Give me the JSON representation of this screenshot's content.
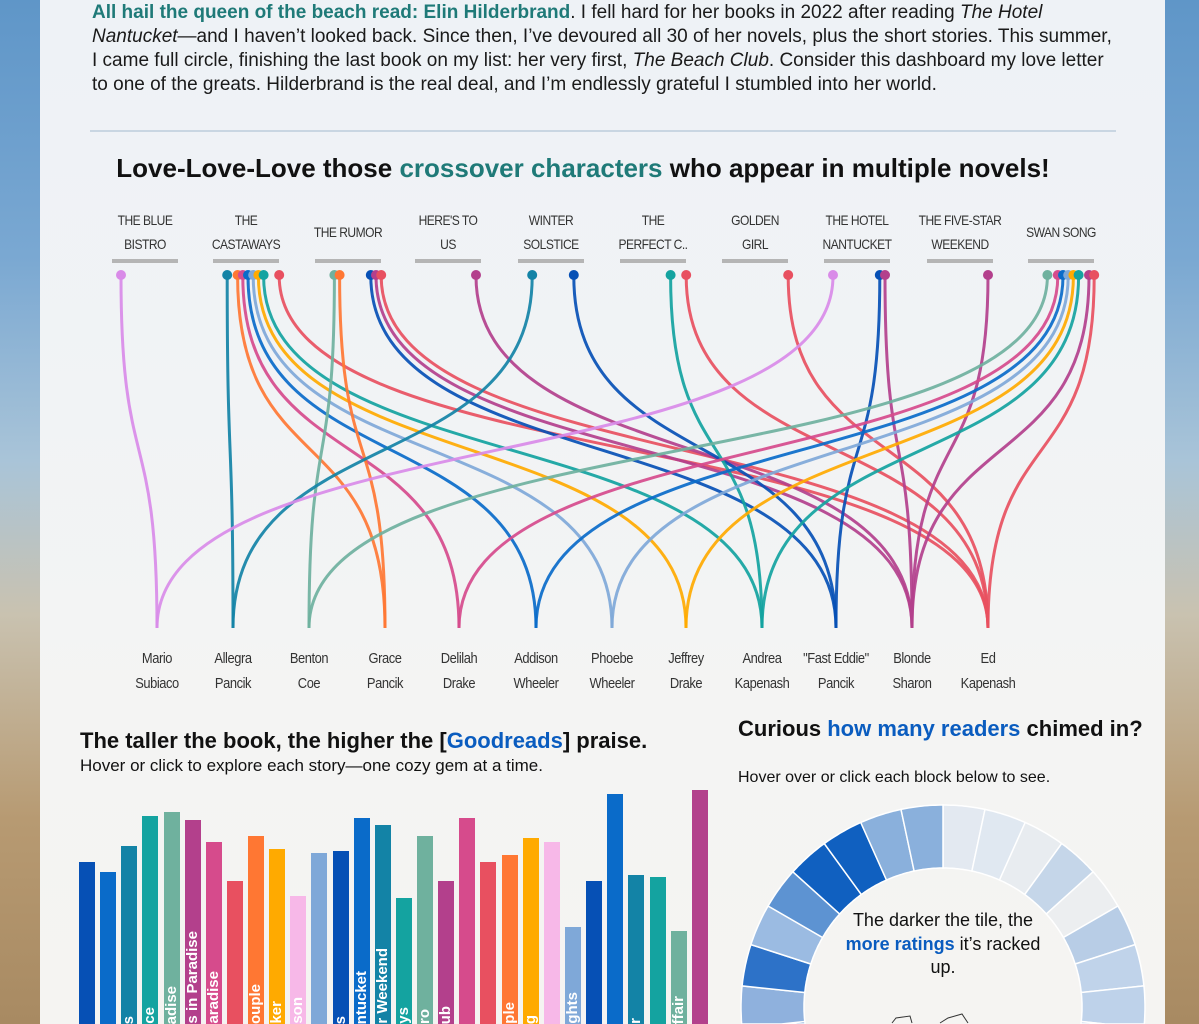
{
  "intro": {
    "highlight": "All hail the queen of the beach read: Elin Hilderbrand",
    "t1": ". I fell hard for her books in 2022 after reading ",
    "i1": "The Hotel Nantucket",
    "t2": "—and I haven’t looked back. Since then, I’ve devoured all 30 of her novels, plus the short stories. This summer, I came full circle, finishing the last book on my list: her very first, ",
    "i2": "The Beach Club",
    "t3": ". Consider this dashboard my love letter to one of the greats. Hilderbrand is the real deal, and I’m endlessly grateful I stumbled into her world."
  },
  "crossover": {
    "title_a": "Love-Love-Love those ",
    "title_hl": "crossover characters",
    "title_b": " who appear in multiple novels!",
    "books": [
      [
        "THE BLUE",
        "BISTRO"
      ],
      [
        "THE",
        "CASTAWAYS"
      ],
      [
        "THE RUMOR"
      ],
      [
        "HERE'S TO",
        "US"
      ],
      [
        "WINTER",
        "SOLSTICE"
      ],
      [
        "THE",
        "PERFECT C.."
      ],
      [
        "GOLDEN",
        "GIRL"
      ],
      [
        "THE HOTEL",
        "NANTUCKET"
      ],
      [
        "THE FIVE-STAR",
        "WEEKEND"
      ],
      [
        "SWAN SONG"
      ]
    ],
    "characters": [
      {
        "first": "Mario",
        "last": "Subiaco",
        "color": "#d98be8"
      },
      {
        "first": "Allegra",
        "last": "Pancik",
        "color": "#1383a6"
      },
      {
        "first": "Benton",
        "last": "Coe",
        "color": "#6fb19e"
      },
      {
        "first": "Grace",
        "last": "Pancik",
        "color": "#ff7733"
      },
      {
        "first": "Delilah",
        "last": "Drake",
        "color": "#d64b8c"
      },
      {
        "first": "Addison",
        "last": "Wheeler",
        "color": "#0a6bc9"
      },
      {
        "first": "Phoebe",
        "last": "Wheeler",
        "color": "#7fa8d8"
      },
      {
        "first": "Jeffrey",
        "last": "Drake",
        "color": "#ffaa00"
      },
      {
        "first": "Andrea",
        "last": "Kapenash",
        "color": "#14a3a0"
      },
      {
        "first": "\"Fast Eddie\"",
        "last": "Pancik",
        "color": "#0650b5"
      },
      {
        "first": "Blonde",
        "last": "Sharon",
        "color": "#b3408c"
      },
      {
        "first": "Ed",
        "last": "Kapenash",
        "color": "#e85060"
      }
    ],
    "links": [
      [
        0,
        0
      ],
      [
        1,
        1
      ],
      [
        1,
        3
      ],
      [
        1,
        4
      ],
      [
        1,
        5
      ],
      [
        1,
        6
      ],
      [
        1,
        7
      ],
      [
        1,
        8
      ],
      [
        1,
        11
      ],
      [
        2,
        2
      ],
      [
        2,
        3
      ],
      [
        2,
        9
      ],
      [
        2,
        10
      ],
      [
        2,
        11
      ],
      [
        3,
        10
      ],
      [
        4,
        1
      ],
      [
        4,
        9
      ],
      [
        5,
        8
      ],
      [
        5,
        11
      ],
      [
        6,
        11
      ],
      [
        7,
        0
      ],
      [
        7,
        9
      ],
      [
        7,
        10
      ],
      [
        8,
        10
      ],
      [
        9,
        2
      ],
      [
        9,
        4
      ],
      [
        9,
        5
      ],
      [
        9,
        6
      ],
      [
        9,
        7
      ],
      [
        9,
        8
      ],
      [
        9,
        10
      ],
      [
        9,
        11
      ]
    ]
  },
  "bars": {
    "title_a": "The taller the book, the higher the [",
    "title_hl": "Goodreads",
    "title_b": "] praise.",
    "subtitle": "Hover or click to explore each story—one cozy gem at a time.",
    "chart_data": {
      "type": "bar",
      "values": [
        3.87,
        3.82,
        3.94,
        4.08,
        4.1,
        4.06,
        3.96,
        3.78,
        3.99,
        3.93,
        3.71,
        3.91,
        3.92,
        4.07,
        4.04,
        3.7,
        3.99,
        3.78,
        4.07,
        3.87,
        3.9,
        3.98,
        3.96,
        3.57,
        3.78,
        4.18,
        3.81,
        3.8,
        3.55,
        4.2
      ],
      "labels": [
        "",
        "",
        "s",
        "ce",
        "adise",
        "s in Paradise",
        "aradise",
        "",
        "ouple",
        "ker",
        "son",
        "",
        "s",
        "ntucket",
        "r Weekend",
        "ys",
        "ro",
        "ub",
        "",
        "",
        "ple",
        "g",
        "",
        "ghts",
        "",
        "",
        "r",
        "",
        "ffair",
        ""
      ],
      "colors": [
        "#0650b5",
        "#0a6bc9",
        "#1383a6",
        "#14a3a0",
        "#6fb19e",
        "#b3408c",
        "#d64b8c",
        "#e85060",
        "#ff7733",
        "#ffaa00",
        "#f7b8e8",
        "#7fa8d8",
        "#0650b5",
        "#0a6bc9",
        "#1383a6",
        "#14a3a0",
        "#6fb19e",
        "#b3408c",
        "#d64b8c",
        "#e85060",
        "#ff7733",
        "#ffaa00",
        "#f7b8e8",
        "#7fa8d8",
        "#0650b5",
        "#0a6bc9",
        "#1383a6",
        "#14a3a0",
        "#6fb19e",
        "#b3408c"
      ]
    }
  },
  "ratings": {
    "title_a": "Curious ",
    "title_hl": "how many readers",
    "title_b": " chimed in?",
    "subtitle": "Hover over or click each block below to see.",
    "center_a": "The darker the tile, the ",
    "center_hl": "more ratings",
    "center_b": " it’s racked up.",
    "tile_colors": [
      "#e3e9f1",
      "#e0e8f1",
      "#e8ecf0",
      "#c5d6e9",
      "#eceef0",
      "#b8cde6",
      "#c0d3ea",
      "#bed2ea",
      "#c8d8ec",
      "#b0c8e6",
      "#a8c2e4",
      "#c4d6eb",
      "#9fbde2",
      "#b6cce8",
      "#8fb1dd",
      "#a3bfe2",
      "#6e9ed6",
      "#95b6df",
      "#7aa4d8",
      "#5d93d2",
      "#74a2d6",
      "#78a4d8",
      "#8fb1dd",
      "#2d72c8",
      "#9bbbe2",
      "#5d93d2",
      "#1060c0",
      "#1060c0",
      "#8ab0dc",
      "#8ab0dc"
    ]
  }
}
